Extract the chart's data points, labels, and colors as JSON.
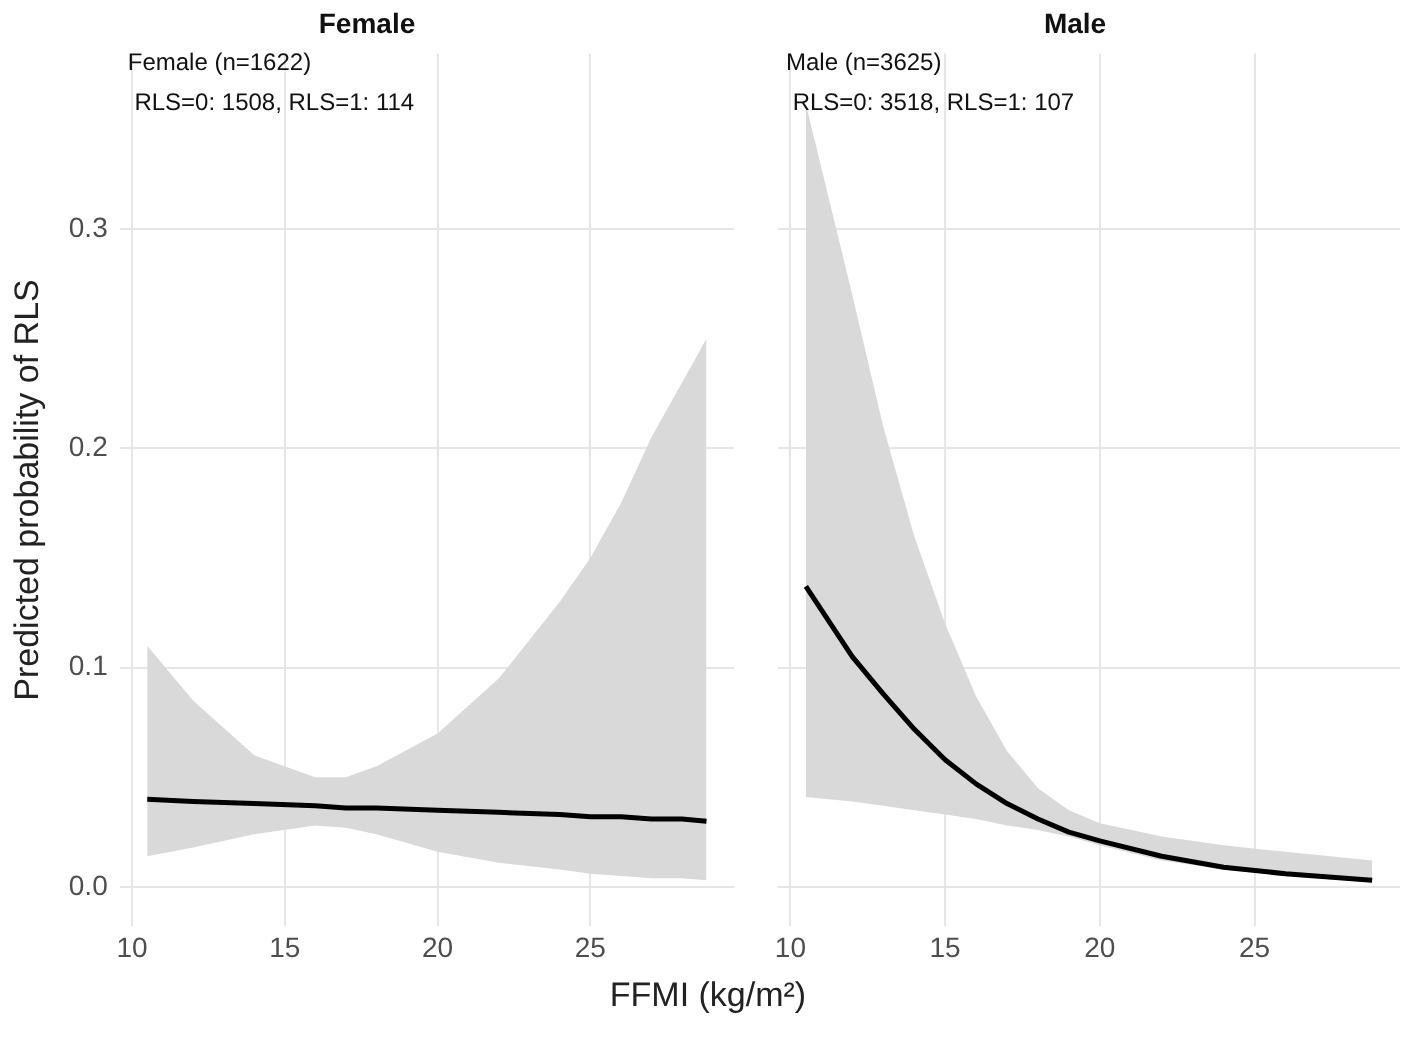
{
  "chart_data": [
    {
      "type": "line",
      "title": "Female",
      "ylabel": "Predicted probability of RLS",
      "xlabel": "FFMI (kg/m²)",
      "annotations": [
        "Female (n=1622)",
        " RLS=0: 1508, RLS=1: 114"
      ],
      "x": [
        10.5,
        12,
        14,
        16,
        17,
        18,
        20,
        22,
        24,
        25,
        26,
        27,
        28,
        28.8
      ],
      "series": [
        {
          "color": "#000000",
          "values": [
            0.04,
            0.039,
            0.038,
            0.037,
            0.036,
            0.036,
            0.035,
            0.034,
            0.033,
            0.032,
            0.032,
            0.031,
            0.031,
            0.03
          ],
          "lower": [
            0.014,
            0.018,
            0.024,
            0.028,
            0.027,
            0.024,
            0.016,
            0.011,
            0.008,
            0.006,
            0.005,
            0.004,
            0.004,
            0.003
          ],
          "upper": [
            0.11,
            0.085,
            0.06,
            0.05,
            0.05,
            0.055,
            0.07,
            0.095,
            0.13,
            0.15,
            0.175,
            0.205,
            0.23,
            0.25
          ]
        }
      ],
      "xlim": [
        9.6,
        29.7
      ],
      "xticks": [
        10,
        15,
        20,
        25
      ],
      "ylim": [
        -0.018,
        0.38
      ],
      "yticks": [
        {
          "value": 0,
          "label": "0.0"
        },
        0.1,
        0.2,
        0.3
      ],
      "grid": true,
      "legend": false
    },
    {
      "type": "line",
      "title": "Male",
      "annotations": [
        "Male (n=3625)",
        " RLS=0: 3518, RLS=1: 107"
      ],
      "x": [
        10.5,
        12,
        13,
        14,
        15,
        16,
        17,
        18,
        19,
        20,
        22,
        24,
        26,
        28.8
      ],
      "series": [
        {
          "color": "#000000",
          "values": [
            0.137,
            0.105,
            0.088,
            0.072,
            0.058,
            0.047,
            0.038,
            0.031,
            0.025,
            0.021,
            0.014,
            0.009,
            0.006,
            0.003
          ],
          "lower": [
            0.041,
            0.039,
            0.037,
            0.035,
            0.033,
            0.031,
            0.028,
            0.026,
            0.023,
            0.019,
            0.012,
            0.008,
            0.005,
            0.002
          ],
          "upper": [
            0.357,
            0.27,
            0.21,
            0.16,
            0.12,
            0.087,
            0.062,
            0.045,
            0.035,
            0.029,
            0.023,
            0.019,
            0.016,
            0.012
          ]
        }
      ],
      "xlim": [
        9.6,
        29.7
      ],
      "xticks": [
        10,
        15,
        20,
        25
      ],
      "ylim": [
        -0.018,
        0.38
      ],
      "yticks": [
        0,
        0.1,
        0.2,
        0.3
      ],
      "grid": true,
      "legend": false,
      "tick_labels": "x"
    }
  ]
}
